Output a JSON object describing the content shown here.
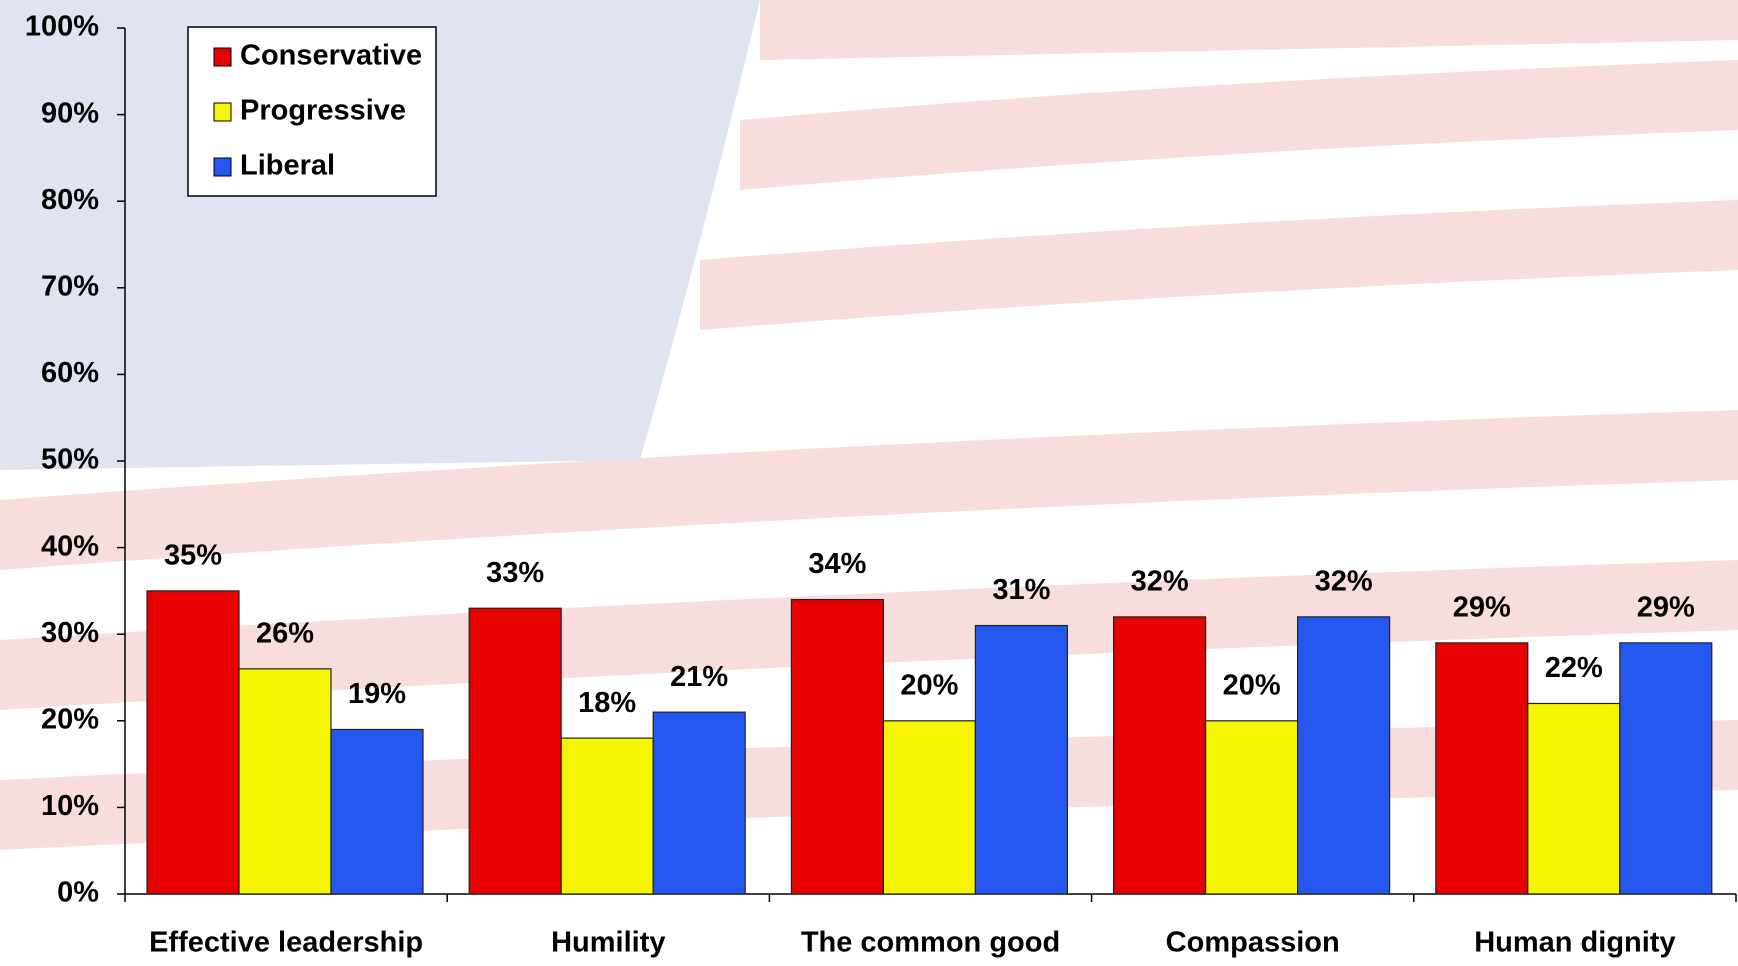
{
  "chart_data": {
    "type": "bar",
    "categories": [
      "Effective leadership",
      "Humility",
      "The common good",
      "Compassion",
      "Human dignity"
    ],
    "series": [
      {
        "name": "Conservative",
        "color": "#e60000",
        "values": [
          35,
          33,
          34,
          32,
          29
        ],
        "value_labels": [
          "35%",
          "33%",
          "34%",
          "32%",
          "29%"
        ]
      },
      {
        "name": "Progressive",
        "color": "#f5f500",
        "values": [
          26,
          18,
          20,
          20,
          22
        ],
        "value_labels": [
          "26%",
          "18%",
          "20%",
          "20%",
          "22%"
        ]
      },
      {
        "name": "Liberal",
        "color": "#2457f0",
        "values": [
          19,
          21,
          31,
          32,
          29
        ],
        "value_labels": [
          "19%",
          "21%",
          "31%",
          "32%",
          "29%"
        ]
      }
    ],
    "ylim": [
      0,
      100
    ],
    "yticks": [
      {
        "value": 0,
        "label": "0%"
      },
      {
        "value": 10,
        "label": "10%"
      },
      {
        "value": 20,
        "label": "20%"
      },
      {
        "value": 30,
        "label": "30%"
      },
      {
        "value": 40,
        "label": "40%"
      },
      {
        "value": 50,
        "label": "50%"
      },
      {
        "value": 60,
        "label": "60%"
      },
      {
        "value": 70,
        "label": "70%"
      },
      {
        "value": 80,
        "label": "80%"
      },
      {
        "value": 90,
        "label": "90%"
      },
      {
        "value": 100,
        "label": "100%"
      }
    ],
    "legend": "upper left"
  }
}
